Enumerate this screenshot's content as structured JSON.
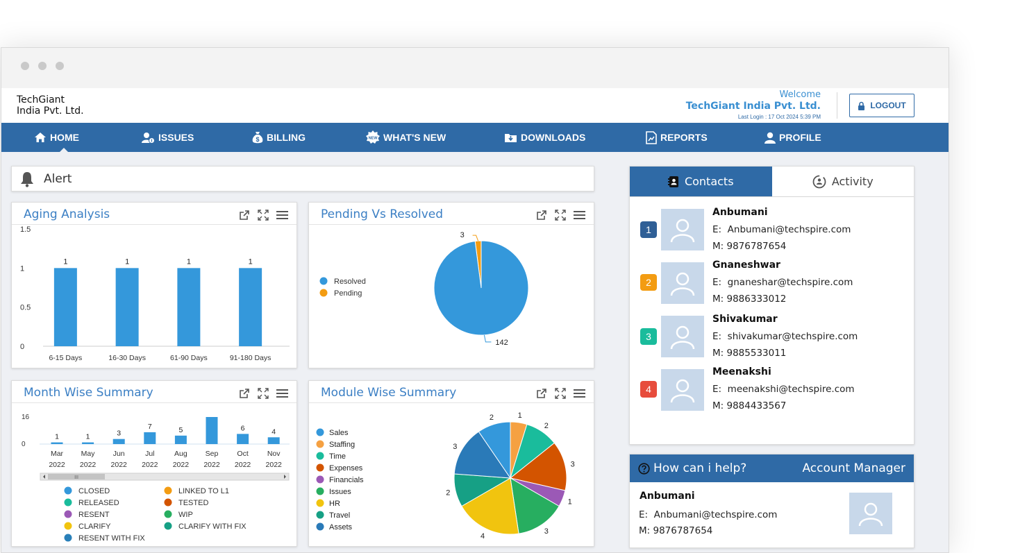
{
  "header": {
    "logo_line1": "TechGiant",
    "logo_line2": "India Pvt. Ltd.",
    "welcome": "Welcome",
    "company": "TechGiant India Pvt. Ltd.",
    "last_login": "Last Login : 17 Oct 2024 5:39 PM",
    "logout_label": "LOGOUT"
  },
  "nav": {
    "items": [
      {
        "label": "HOME",
        "icon": "home-icon"
      },
      {
        "label": "ISSUES",
        "icon": "user-issue-icon"
      },
      {
        "label": "BILLING",
        "icon": "money-bag-icon"
      },
      {
        "label": "WHAT'S NEW",
        "icon": "new-badge-icon"
      },
      {
        "label": "DOWNLOADS",
        "icon": "download-icon"
      },
      {
        "label": "REPORTS",
        "icon": "report-icon"
      },
      {
        "label": "PROFILE",
        "icon": "user-icon"
      }
    ]
  },
  "alert": {
    "label": "Alert",
    "icon": "bell-icon"
  },
  "panels": {
    "aging": {
      "title": "Aging Analysis"
    },
    "pending": {
      "title": "Pending Vs Resolved"
    },
    "month": {
      "title": "Month Wise Summary"
    },
    "module": {
      "title": "Module Wise Summary"
    }
  },
  "chart_data": [
    {
      "type": "bar",
      "title": "Aging Analysis",
      "categories": [
        "6-15 Days",
        "16-30 Days",
        "61-90 Days",
        "91-180 Days"
      ],
      "values": [
        1,
        1,
        1,
        1
      ],
      "ylim": [
        0,
        1.5
      ],
      "yticks": [
        "0",
        "0.5",
        "1",
        "1.5"
      ],
      "data_labels": true,
      "color": "#3498db"
    },
    {
      "type": "pie",
      "title": "Pending Vs Resolved",
      "labels": [
        "Resolved",
        "Pending"
      ],
      "values": [
        142,
        3
      ],
      "colors": [
        "#3498db",
        "#f39c12"
      ],
      "legend": "left"
    },
    {
      "type": "bar",
      "title": "Month Wise Summary",
      "categories": [
        "Mar 2022",
        "May 2022",
        "Jun 2022",
        "Jul 2022",
        "Aug 2022",
        "Sep 2022",
        "Oct 2022",
        "Nov 2022"
      ],
      "values": [
        1,
        1,
        3,
        7,
        5,
        16,
        6,
        4
      ],
      "data_labels": [
        "1",
        "1",
        "3",
        "7",
        "5",
        "",
        "6",
        "4"
      ],
      "ylim": [
        0,
        16
      ],
      "yticks": [
        "0",
        "16"
      ],
      "color": "#3498db",
      "legend": [
        {
          "name": "CLOSED",
          "color": "#3498db"
        },
        {
          "name": "LINKED TO L1",
          "color": "#f39c12"
        },
        {
          "name": "RELEASED",
          "color": "#1abc9c"
        },
        {
          "name": "TESTED",
          "color": "#d35400"
        },
        {
          "name": "RESENT",
          "color": "#9b59b6"
        },
        {
          "name": "WIP",
          "color": "#27ae60"
        },
        {
          "name": "CLARIFY",
          "color": "#f1c40f"
        },
        {
          "name": "CLARIFY WITH FIX",
          "color": "#16a085"
        },
        {
          "name": "RESENT WITH FIX",
          "color": "#2980b9"
        }
      ],
      "scrollbar_grip": "III"
    },
    {
      "type": "pie",
      "title": "Module Wise Summary",
      "labels": [
        "Sales",
        "Staffing",
        "Time",
        "Expenses",
        "Financials",
        "Issues",
        "HR",
        "Travel",
        "Assets"
      ],
      "values": [
        2,
        1,
        2,
        3,
        1,
        3,
        4,
        2,
        3
      ],
      "colors": [
        "#3498db",
        "#f5a142",
        "#1abc9c",
        "#d35400",
        "#9b59b6",
        "#27ae60",
        "#f1c40f",
        "#16a085",
        "#2a7ab8"
      ],
      "legend": "left"
    }
  ],
  "contacts": {
    "tab_contacts": "Contacts",
    "tab_activity": "Activity",
    "list": [
      {
        "num": "1",
        "color": "#2f5f96",
        "name": "Anbumani",
        "email_label": "E:",
        "email": "Anbumani@techspire.com",
        "mobile_label": "M:",
        "mobile": "9876787654"
      },
      {
        "num": "2",
        "color": "#f39c12",
        "name": "Gnaneshwar",
        "email_label": "E:",
        "email": "gnaneshar@techspire.com",
        "mobile_label": "M:",
        "mobile": "9886333012"
      },
      {
        "num": "3",
        "color": "#1abc9c",
        "name": "Shivakumar",
        "email_label": "E:",
        "email": "shivakumar@techspire.com",
        "mobile_label": "M:",
        "mobile": "9885533011"
      },
      {
        "num": "4",
        "color": "#e74c3c",
        "name": "Meenakshi",
        "email_label": "E:",
        "email": "meenakshi@techspire.com",
        "mobile_label": "M:",
        "mobile": "9884433567"
      }
    ]
  },
  "help": {
    "title": "How can i help?",
    "subtitle": "Account Manager",
    "name": "Anbumani",
    "email_label": "E:",
    "email": "Anbumani@techspire.com",
    "mobile_label": "M:",
    "mobile": "9876787654"
  }
}
